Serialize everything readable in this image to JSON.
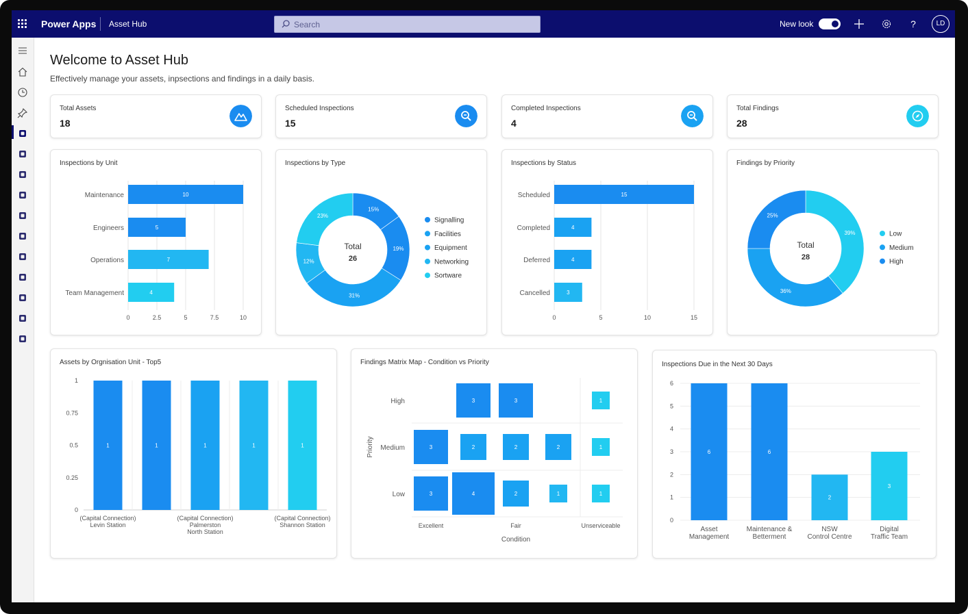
{
  "header": {
    "brand": "Power Apps",
    "app_name": "Asset Hub",
    "search_placeholder": "Search",
    "new_look_label": "New look",
    "new_look_on": true,
    "avatar_initials": "LD",
    "bar_color": "#0c0e6e"
  },
  "sidebar": {
    "items": [
      {
        "icon": "hamburger-menu-icon"
      },
      {
        "icon": "home-icon"
      },
      {
        "icon": "recent-clock-icon"
      },
      {
        "icon": "pin-icon"
      },
      {
        "icon": "dashboard-icon",
        "active": true
      },
      {
        "icon": "assets-user-icon"
      },
      {
        "icon": "org-hierarchy-icon"
      },
      {
        "icon": "timer-icon"
      },
      {
        "icon": "calendar-icon"
      },
      {
        "icon": "cart-icon"
      },
      {
        "icon": "calendar-alt-icon"
      },
      {
        "icon": "eye-icon"
      },
      {
        "icon": "calendar-grid-icon"
      },
      {
        "icon": "monitor-chart-icon"
      },
      {
        "icon": "monitor-chart-alt-icon"
      }
    ]
  },
  "page": {
    "title": "Welcome to Asset Hub",
    "subtitle": "Effectively manage your assets, inpsections and findings in a daily basis."
  },
  "kpis": [
    {
      "label": "Total Assets",
      "value": "18",
      "icon": "mountain-icon",
      "color": "#1a8cf0"
    },
    {
      "label": "Scheduled Inspections",
      "value": "15",
      "icon": "search-zoom-icon",
      "color": "#1a8cf0"
    },
    {
      "label": "Completed Inspections",
      "value": "4",
      "icon": "search-zoom-icon",
      "color": "#1aa2f2"
    },
    {
      "label": "Total Findings",
      "value": "28",
      "icon": "compass-icon",
      "color": "#22cdf0"
    }
  ],
  "palette": [
    "#1a8cf0",
    "#1aa2f2",
    "#22b7f2",
    "#22cdf0",
    "#25dcf5"
  ],
  "chart_data": [
    {
      "id": "inspections-by-unit",
      "type": "bar",
      "orientation": "horizontal",
      "title": "Inspections by Unit",
      "categories": [
        "Maintenance",
        "Engineers",
        "Operations",
        "Team Management"
      ],
      "values": [
        10,
        5,
        7,
        4
      ],
      "xlim": [
        0,
        10
      ],
      "xticks": [
        "0",
        "2.5",
        "5",
        "7.5",
        "10"
      ],
      "grid": true
    },
    {
      "id": "inspections-by-type",
      "type": "pie",
      "donut": true,
      "title": "Inspections by Type",
      "center_label": "Total",
      "center_value": "26",
      "legend_position": "right",
      "labels": [
        "Signalling",
        "Facilities",
        "Equipment",
        "Networking",
        "Sortware"
      ],
      "slices": [
        {
          "label": "Signalling",
          "value": 15,
          "display": "15%"
        },
        {
          "label": "Facilities",
          "value": 19,
          "display": "19%"
        },
        {
          "label": "Equipment",
          "value": 31,
          "display": "31%"
        },
        {
          "label": "Networking",
          "value": 12,
          "display": "12%"
        },
        {
          "label": "Sortware",
          "value": 23,
          "display": "23%"
        }
      ]
    },
    {
      "id": "inspections-by-status",
      "type": "bar",
      "orientation": "horizontal",
      "title": "Inspections by Status",
      "categories": [
        "Scheduled",
        "Completed",
        "Deferred",
        "Cancelled"
      ],
      "values": [
        15,
        4,
        4,
        3
      ],
      "xlim": [
        0,
        15
      ],
      "xticks": [
        "0",
        "5",
        "10",
        "15"
      ],
      "grid": true
    },
    {
      "id": "findings-by-priority",
      "type": "pie",
      "donut": true,
      "title": "Findings by Priority",
      "center_label": "Total",
      "center_value": "28",
      "legend_position": "right",
      "labels": [
        "Low",
        "Medium",
        "High"
      ],
      "slices": [
        {
          "label": "Low",
          "value": 39,
          "display": "39%"
        },
        {
          "label": "Medium",
          "value": 36,
          "display": "36%"
        },
        {
          "label": "High",
          "value": 25,
          "display": "25%"
        }
      ]
    },
    {
      "id": "assets-by-org-unit",
      "type": "bar",
      "orientation": "vertical",
      "title": "Assets by Orgnisation Unit - Top5",
      "values": [
        1,
        1,
        1,
        1,
        1
      ],
      "ylim": [
        0,
        1
      ],
      "yticks": [
        "0",
        "0.25",
        "0.5",
        "0.75",
        "1"
      ],
      "category_labels": [
        {
          "index": 0,
          "lines": [
            "(Capital Connection)",
            "Levin Station"
          ]
        },
        {
          "index": 2,
          "lines": [
            "(Capital Connection)",
            "Palmerston",
            "North Station"
          ]
        },
        {
          "index": 4,
          "lines": [
            "(Capital Connection)",
            "Shannon Station"
          ]
        }
      ],
      "grid": true
    },
    {
      "id": "findings-matrix",
      "type": "heatmap",
      "title": "Findings Matrix Map - Condition vs Priority",
      "xlabel": "Condition",
      "ylabel": "Priority",
      "rows": [
        "High",
        "Medium",
        "Low"
      ],
      "column_labels": [
        {
          "index": 0,
          "label": "Excellent"
        },
        {
          "index": 2,
          "label": "Fair"
        },
        {
          "index": 4,
          "label": "Unserviceable"
        }
      ],
      "cells": [
        {
          "row": 0,
          "col": 1,
          "value": 3
        },
        {
          "row": 0,
          "col": 2,
          "value": 3
        },
        {
          "row": 0,
          "col": 4,
          "value": 1
        },
        {
          "row": 1,
          "col": 0,
          "value": 3
        },
        {
          "row": 1,
          "col": 1,
          "value": 2
        },
        {
          "row": 1,
          "col": 2,
          "value": 2
        },
        {
          "row": 1,
          "col": 3,
          "value": 2
        },
        {
          "row": 1,
          "col": 4,
          "value": 1
        },
        {
          "row": 2,
          "col": 0,
          "value": 3
        },
        {
          "row": 2,
          "col": 1,
          "value": 4
        },
        {
          "row": 2,
          "col": 2,
          "value": 2
        },
        {
          "row": 2,
          "col": 3,
          "value": 1
        },
        {
          "row": 2,
          "col": 4,
          "value": 1
        }
      ]
    },
    {
      "id": "inspections-due-30",
      "type": "bar",
      "orientation": "vertical",
      "title": "Inspections Due in the Next 30 Days",
      "categories": [
        [
          "Asset",
          "Management"
        ],
        [
          "Maintenance &",
          "Betterment"
        ],
        [
          "NSW",
          "Control Centre"
        ],
        [
          "Digital",
          "Traffic Team"
        ]
      ],
      "values": [
        6,
        6,
        2,
        3
      ],
      "ylim": [
        0,
        6
      ],
      "yticks": [
        "0",
        "1",
        "2",
        "3",
        "4",
        "5",
        "6"
      ],
      "grid": true
    }
  ]
}
